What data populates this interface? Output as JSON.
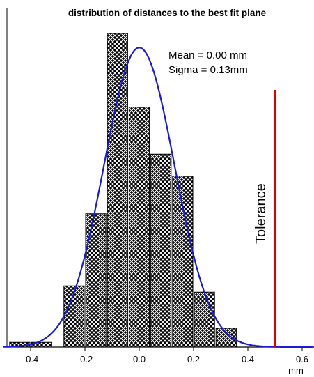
{
  "chart_data": {
    "type": "bar",
    "title": "distribution of distances to the best fit plane",
    "xlabel": "mm",
    "ylabel": "",
    "xlim": [
      -0.5,
      0.65
    ],
    "ylim": [
      0,
      1.05
    ],
    "xticks": [
      -0.4,
      -0.2,
      0.0,
      0.2,
      0.4,
      0.6
    ],
    "xtick_labels": [
      "-0.4",
      "-0.2",
      "0.0",
      "0.2",
      "0.4",
      "0.6"
    ],
    "bin_width": 0.08,
    "bins": [
      {
        "x_start": -0.48,
        "x_end": -0.4,
        "value": 0.015
      },
      {
        "x_start": -0.4,
        "x_end": -0.32,
        "value": 0.015
      },
      {
        "x_start": -0.28,
        "x_end": -0.2,
        "value": 0.195
      },
      {
        "x_start": -0.2,
        "x_end": -0.12,
        "value": 0.425
      },
      {
        "x_start": -0.12,
        "x_end": -0.04,
        "value": 1.0
      },
      {
        "x_start": -0.04,
        "x_end": 0.04,
        "value": 0.765
      },
      {
        "x_start": 0.04,
        "x_end": 0.12,
        "value": 0.615
      },
      {
        "x_start": 0.12,
        "x_end": 0.2,
        "value": 0.545
      },
      {
        "x_start": 0.2,
        "x_end": 0.28,
        "value": 0.175
      },
      {
        "x_start": 0.28,
        "x_end": 0.36,
        "value": 0.06
      }
    ],
    "fit_curve": {
      "type": "normal",
      "mean": 0.0,
      "sigma": 0.13,
      "peak": 0.955,
      "color": "#1a1adc"
    },
    "annotations": [
      "Mean =  0.00 mm",
      "Sigma = 0.13mm"
    ],
    "tolerance": {
      "label": "Tolerance",
      "x": 0.5,
      "top": 0.82,
      "color": "#e00000"
    },
    "bar_pattern": "crosshatch",
    "grid": false
  }
}
